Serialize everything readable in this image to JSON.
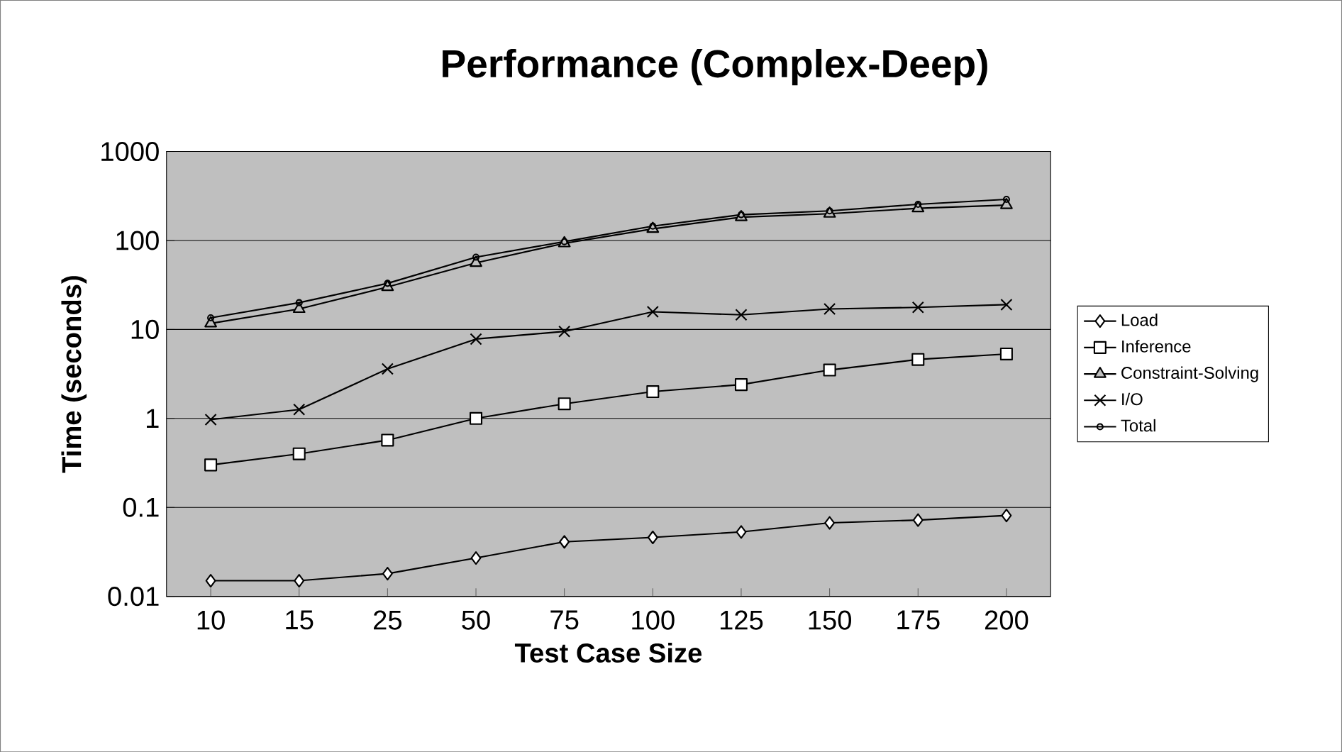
{
  "chart_data": {
    "type": "line",
    "title": "Performance (Complex-Deep)",
    "xlabel": "Test Case Size",
    "ylabel": "Time (seconds)",
    "categories": [
      "10",
      "15",
      "25",
      "50",
      "75",
      "100",
      "125",
      "150",
      "175",
      "200"
    ],
    "log": "y",
    "ylim": [
      0.01,
      1000
    ],
    "yticks": [
      0.01,
      0.1,
      1,
      10,
      100,
      1000
    ],
    "grid": "y",
    "legend": "right",
    "series": [
      {
        "name": "Load",
        "color": "#000000",
        "marker": "diamond",
        "values": [
          0.015,
          0.015,
          0.018,
          0.027,
          0.041,
          0.046,
          0.053,
          0.067,
          0.072,
          0.081
        ]
      },
      {
        "name": "Inference",
        "color": "#000000",
        "marker": "square",
        "values": [
          0.3,
          0.4,
          0.57,
          1.0,
          1.46,
          2.0,
          2.4,
          3.5,
          4.6,
          5.3
        ]
      },
      {
        "name": "Constraint-Solving",
        "color": "#000000",
        "marker": "triangle",
        "values": [
          11.7,
          17,
          30,
          56,
          93,
          135,
          183,
          200,
          230,
          250
        ]
      },
      {
        "name": "I/O",
        "color": "#000000",
        "marker": "cross",
        "values": [
          0.97,
          1.26,
          3.6,
          7.8,
          9.5,
          15.8,
          14.6,
          17,
          17.7,
          19
        ]
      },
      {
        "name": "Total",
        "color": "#000000",
        "marker": "circle",
        "values": [
          13.5,
          20,
          33,
          65,
          97,
          145,
          195,
          215,
          255,
          290
        ]
      }
    ]
  }
}
